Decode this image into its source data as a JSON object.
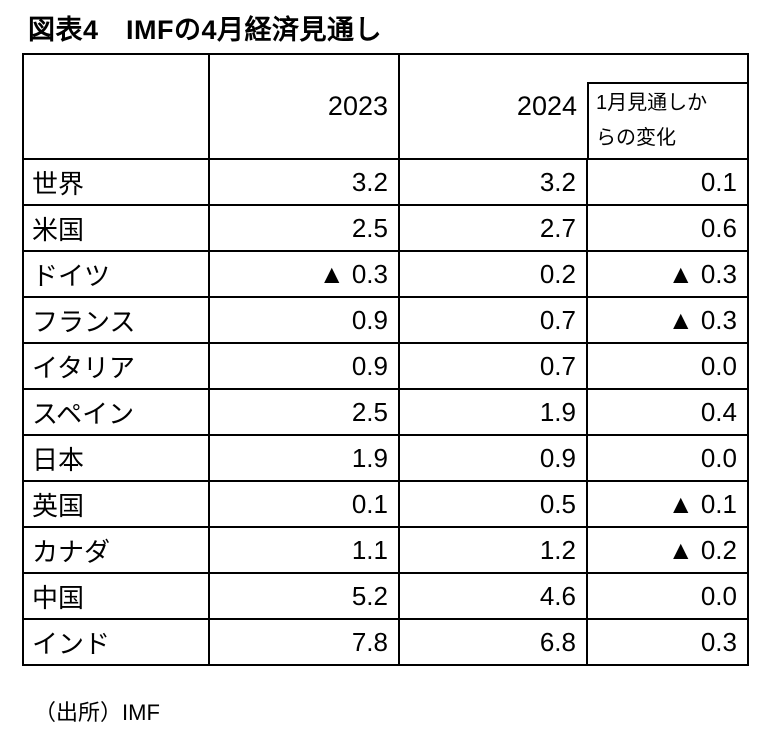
{
  "title": "図表4　IMFの4月経済見通し",
  "colors": {
    "text": "#000000",
    "border": "#000000",
    "background": "#ffffff"
  },
  "negative_marker": "▲",
  "table": {
    "col_headers": {
      "label": "",
      "year1": "2023",
      "year2": "2024",
      "change": "1月見通しか\nらの変化"
    },
    "rows": [
      {
        "label": "世界",
        "y2023": "3.2",
        "y2024": "3.2",
        "change": "0.1"
      },
      {
        "label": "米国",
        "y2023": "2.5",
        "y2024": "2.7",
        "change": "0.6"
      },
      {
        "label": "ドイツ",
        "y2023": "▲ 0.3",
        "y2024": "0.2",
        "change": "▲ 0.3"
      },
      {
        "label": "フランス",
        "y2023": "0.9",
        "y2024": "0.7",
        "change": "▲ 0.3"
      },
      {
        "label": "イタリア",
        "y2023": "0.9",
        "y2024": "0.7",
        "change": "0.0"
      },
      {
        "label": "スペイン",
        "y2023": "2.5",
        "y2024": "1.9",
        "change": "0.4"
      },
      {
        "label": "日本",
        "y2023": "1.9",
        "y2024": "0.9",
        "change": "0.0"
      },
      {
        "label": "英国",
        "y2023": "0.1",
        "y2024": "0.5",
        "change": "▲ 0.1"
      },
      {
        "label": "カナダ",
        "y2023": "1.1",
        "y2024": "1.2",
        "change": "▲ 0.2"
      },
      {
        "label": "中国",
        "y2023": "5.2",
        "y2024": "4.6",
        "change": "0.0"
      },
      {
        "label": "インド",
        "y2023": "7.8",
        "y2024": "6.8",
        "change": "0.3"
      }
    ]
  },
  "source": "（出所）IMF"
}
